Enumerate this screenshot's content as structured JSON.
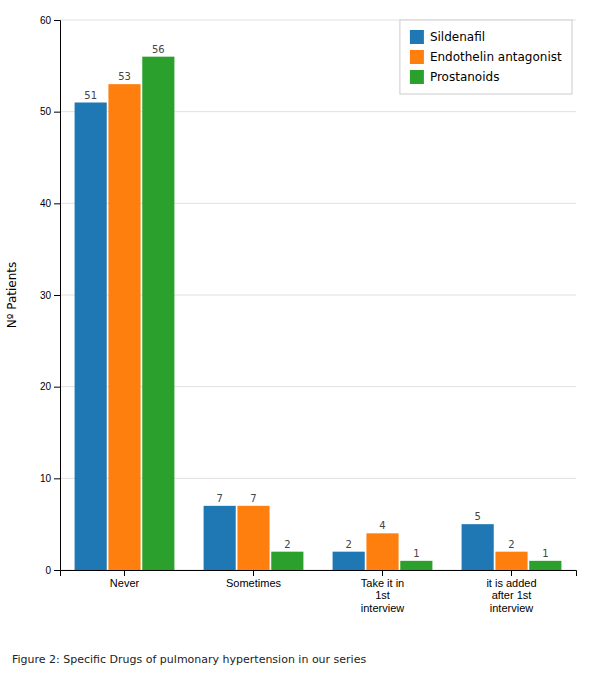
{
  "chart_data": {
    "type": "bar",
    "categories": [
      "Never",
      "Sometimes",
      "Take it in\n1st\ninterview",
      "it is added\nafter 1st\ninterview"
    ],
    "series": [
      {
        "name": "Sildenafil",
        "values": [
          51,
          7,
          2,
          5
        ]
      },
      {
        "name": "Endothelin antagonist",
        "values": [
          53,
          7,
          4,
          2
        ]
      },
      {
        "name": "Prostanoids",
        "values": [
          56,
          2,
          1,
          1
        ]
      }
    ],
    "ylabel": "Nº Patients",
    "ylim": [
      0,
      60
    ],
    "yticks": [
      0,
      10,
      20,
      30,
      40,
      50,
      60
    ],
    "grid": true,
    "legend": "upper right",
    "data_labels": true,
    "annotations": [
      "Figure 2: Specific Drugs of pulmonary hypertension in our series"
    ]
  }
}
